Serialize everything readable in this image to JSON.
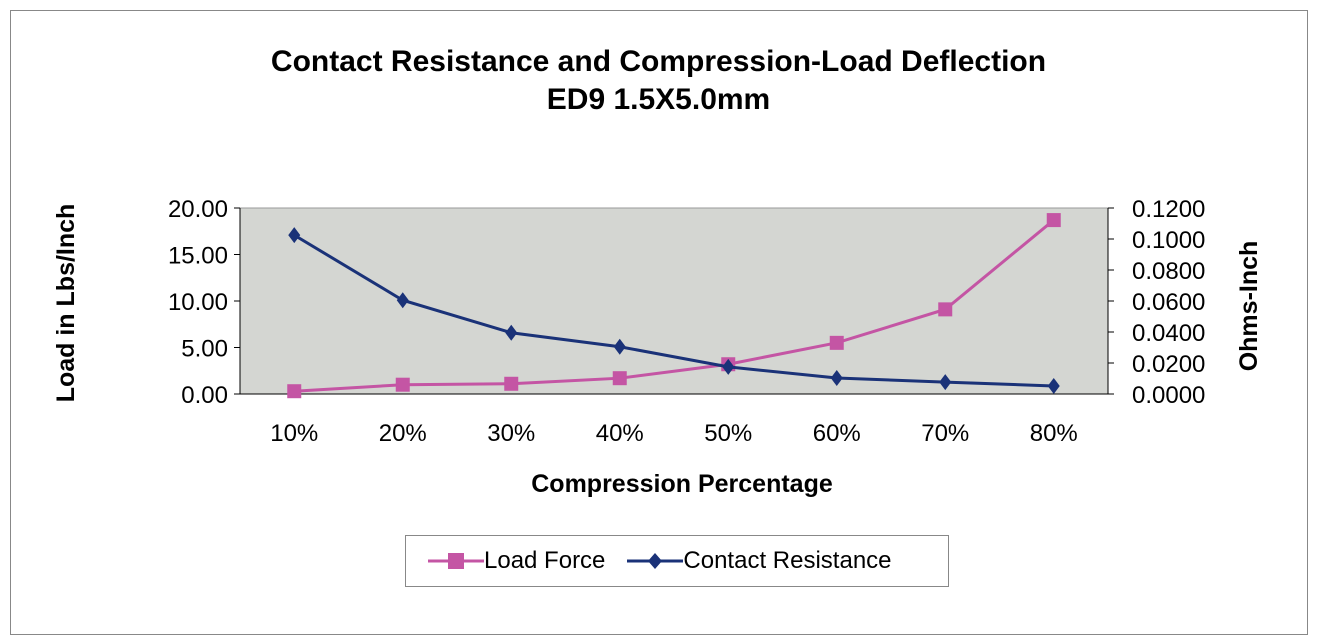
{
  "chart_data": {
    "type": "line",
    "title": "Contact Resistance and Compression-Load Deflection",
    "subtitle": "ED9 1.5X5.0mm",
    "xlabel": "Compression Percentage",
    "ylabel": "Load in Lbs/Inch",
    "y2label": "Ohms-Inch",
    "categories": [
      "10%",
      "20%",
      "30%",
      "40%",
      "50%",
      "60%",
      "70%",
      "80%"
    ],
    "ylim": [
      0,
      20
    ],
    "y2lim": [
      0,
      0.12
    ],
    "yticks": [
      "0.00",
      "5.00",
      "10.00",
      "15.00",
      "20.00"
    ],
    "y2ticks": [
      "0.0000",
      "0.0200",
      "0.0400",
      "0.0600",
      "0.0800",
      "0.1000",
      "0.1200"
    ],
    "grid": false,
    "legend": "bottom",
    "series": [
      {
        "name": "Load Force",
        "axis": "left",
        "color": "#C455A4",
        "marker": "square",
        "values": [
          0.3,
          1.0,
          1.1,
          1.7,
          3.2,
          5.5,
          9.1,
          18.7
        ]
      },
      {
        "name": "Contact Resistance",
        "axis": "right",
        "color": "#1A3278",
        "marker": "diamond",
        "values": [
          0.1025,
          0.0605,
          0.0395,
          0.0305,
          0.0175,
          0.0103,
          0.0077,
          0.0052
        ]
      }
    ],
    "plot_bg": "#D4D6D2"
  }
}
